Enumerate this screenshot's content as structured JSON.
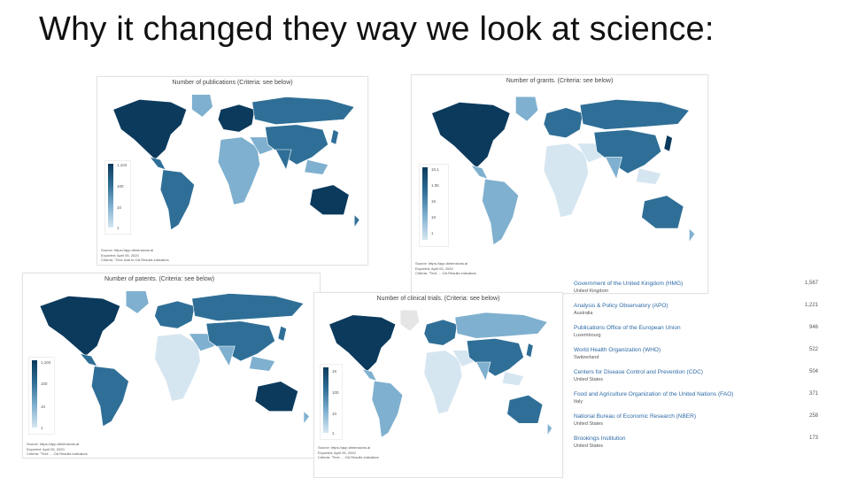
{
  "slide": {
    "title": "Why it changed they way we look at science:"
  },
  "colors": {
    "dark": "#0b3a5c",
    "mid": "#2f6f97",
    "light": "#7fb0cf",
    "pale": "#d6e6f1",
    "empty": "#e5e5e5",
    "link": "#2d6aa5"
  },
  "panels": [
    {
      "title": "Number of publications (Criteria: see below)",
      "legend": [
        "1,104",
        "100",
        "10",
        "1"
      ],
      "source": [
        "Source: https://app.dimensions.ai",
        "Exported: April 05, 2020",
        "Criteria: \"Text: Add to OA Results indicators"
      ]
    },
    {
      "title": "Number of grants. (Criteria: see below)",
      "legend": [
        "10,1",
        "1.0K",
        "1K",
        "10",
        "1"
      ],
      "source": [
        "Source: https://app.dimensions.ai",
        "Exported: April 05, 2020",
        "Criteria: \"Text: ... OA Results indicators"
      ]
    },
    {
      "title": "Number of patents. (Criteria: see below)",
      "legend": [
        "1,104",
        "100",
        "10",
        "1"
      ],
      "source": [
        "Source: https://app.dimensions.ai",
        "Exported: April 05, 2020",
        "Criteria: \"Text: ... OA Results indicators"
      ]
    },
    {
      "title": "Number of clinical trials. (Criteria: see below)",
      "legend": [
        "1K",
        "100",
        "10",
        "1"
      ],
      "source": [
        "Source: https://app.dimensions.ai",
        "Exported: April 05, 2020",
        "Criteria: \"Text: ... OA Results indicators"
      ]
    }
  ],
  "ranking": [
    {
      "name": "Government of the United Kingdom (HMG)",
      "country": "United Kingdom",
      "value": "1,567"
    },
    {
      "name": "Analysis & Policy Observatory (APO)",
      "country": "Australia",
      "value": "1,221"
    },
    {
      "name": "Publications Office of the European Union",
      "country": "Luxembourg",
      "value": "946"
    },
    {
      "name": "World Health Organization (WHO)",
      "country": "Switzerland",
      "value": "522"
    },
    {
      "name": "Centers for Disease Control and Prevention (CDC)",
      "country": "United States",
      "value": "504"
    },
    {
      "name": "Food and Agriculture Organization of the United Nations (FAO)",
      "country": "Italy",
      "value": "371"
    },
    {
      "name": "National Bureau of Economic Research (NBER)",
      "country": "United States",
      "value": "258"
    },
    {
      "name": "Brookings Institution",
      "country": "United States",
      "value": "173"
    }
  ]
}
